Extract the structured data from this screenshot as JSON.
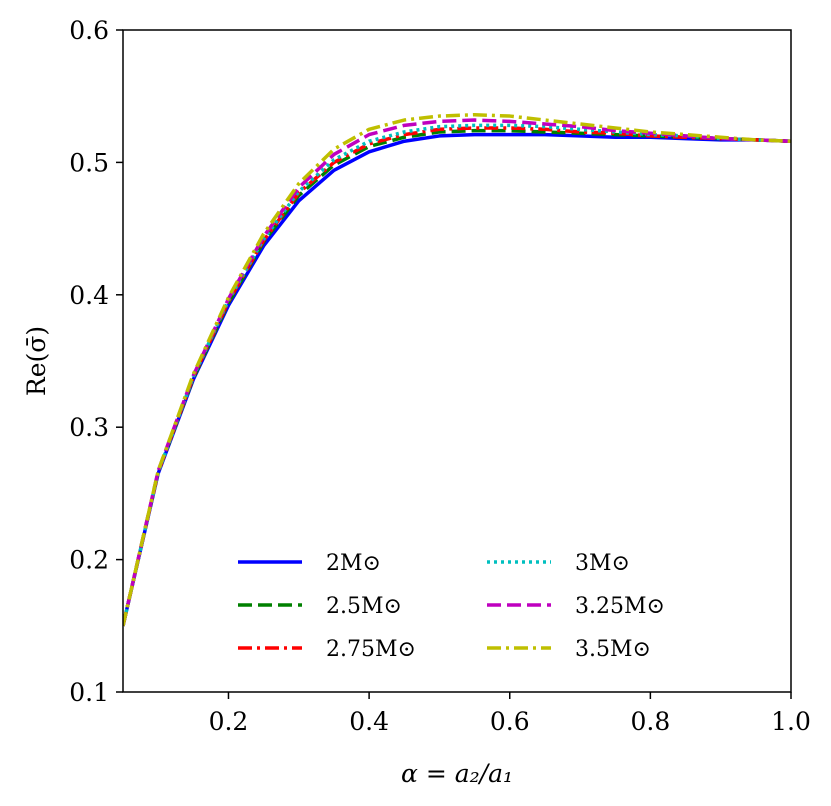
{
  "chart_data": {
    "type": "line",
    "title": "",
    "xlabel": "α = a₂/a₁",
    "ylabel": "Re(σ̄)",
    "xlim": [
      0.05,
      1.0
    ],
    "ylim": [
      0.1,
      0.6
    ],
    "xticks": [
      "0.2",
      "0.4",
      "0.6",
      "0.8",
      "1.0"
    ],
    "yticks": [
      "0.1",
      "0.2",
      "0.3",
      "0.4",
      "0.5",
      "0.6"
    ],
    "grid": false,
    "legend_location": "lower center",
    "series": [
      {
        "name": "2M⊙",
        "color": "#0000ff",
        "style": "solid",
        "x": [
          0.05,
          0.1,
          0.15,
          0.2,
          0.25,
          0.3,
          0.35,
          0.4,
          0.45,
          0.5,
          0.55,
          0.6,
          0.65,
          0.7,
          0.75,
          0.8,
          0.85,
          0.9,
          0.95,
          1.0
        ],
        "y": [
          0.15,
          0.265,
          0.336,
          0.392,
          0.437,
          0.471,
          0.494,
          0.508,
          0.516,
          0.52,
          0.521,
          0.521,
          0.521,
          0.52,
          0.519,
          0.519,
          0.518,
          0.517,
          0.517,
          0.516
        ]
      },
      {
        "name": "2.5M⊙",
        "color": "#008000",
        "style": "dashed",
        "x": [
          0.05,
          0.1,
          0.15,
          0.2,
          0.25,
          0.3,
          0.35,
          0.4,
          0.45,
          0.5,
          0.55,
          0.6,
          0.65,
          0.7,
          0.75,
          0.8,
          0.85,
          0.9,
          0.95,
          1.0
        ],
        "y": [
          0.15,
          0.266,
          0.337,
          0.394,
          0.44,
          0.475,
          0.498,
          0.512,
          0.519,
          0.523,
          0.524,
          0.524,
          0.523,
          0.522,
          0.521,
          0.52,
          0.519,
          0.518,
          0.517,
          0.516
        ]
      },
      {
        "name": "2.75M⊙",
        "color": "#ff0000",
        "style": "dashdot",
        "x": [
          0.05,
          0.1,
          0.15,
          0.2,
          0.25,
          0.3,
          0.35,
          0.4,
          0.45,
          0.5,
          0.55,
          0.6,
          0.65,
          0.7,
          0.75,
          0.8,
          0.85,
          0.9,
          0.95,
          1.0
        ],
        "y": [
          0.15,
          0.266,
          0.338,
          0.395,
          0.441,
          0.477,
          0.5,
          0.514,
          0.521,
          0.525,
          0.526,
          0.526,
          0.525,
          0.523,
          0.522,
          0.52,
          0.519,
          0.518,
          0.517,
          0.516
        ]
      },
      {
        "name": "3M⊙",
        "color": "#00bfbf",
        "style": "dotted",
        "x": [
          0.05,
          0.1,
          0.15,
          0.2,
          0.25,
          0.3,
          0.35,
          0.4,
          0.45,
          0.5,
          0.55,
          0.6,
          0.65,
          0.7,
          0.75,
          0.8,
          0.85,
          0.9,
          0.95,
          1.0
        ],
        "y": [
          0.15,
          0.266,
          0.338,
          0.396,
          0.442,
          0.478,
          0.502,
          0.516,
          0.523,
          0.527,
          0.528,
          0.528,
          0.527,
          0.525,
          0.523,
          0.521,
          0.52,
          0.518,
          0.517,
          0.516
        ]
      },
      {
        "name": "3.25M⊙",
        "color": "#bf00bf",
        "style": "dashed",
        "x": [
          0.05,
          0.1,
          0.15,
          0.2,
          0.25,
          0.3,
          0.35,
          0.4,
          0.45,
          0.5,
          0.55,
          0.6,
          0.65,
          0.7,
          0.75,
          0.8,
          0.85,
          0.9,
          0.95,
          1.0
        ],
        "y": [
          0.15,
          0.267,
          0.339,
          0.397,
          0.444,
          0.481,
          0.506,
          0.521,
          0.528,
          0.531,
          0.532,
          0.531,
          0.529,
          0.527,
          0.524,
          0.522,
          0.52,
          0.518,
          0.517,
          0.516
        ]
      },
      {
        "name": "3.5M⊙",
        "color": "#bfbf00",
        "style": "dashdot",
        "x": [
          0.05,
          0.1,
          0.15,
          0.2,
          0.25,
          0.3,
          0.35,
          0.4,
          0.45,
          0.5,
          0.55,
          0.6,
          0.65,
          0.7,
          0.75,
          0.8,
          0.85,
          0.9,
          0.95,
          1.0
        ],
        "y": [
          0.15,
          0.267,
          0.34,
          0.398,
          0.446,
          0.484,
          0.51,
          0.525,
          0.532,
          0.535,
          0.536,
          0.535,
          0.532,
          0.529,
          0.526,
          0.523,
          0.521,
          0.519,
          0.517,
          0.516
        ]
      }
    ]
  }
}
